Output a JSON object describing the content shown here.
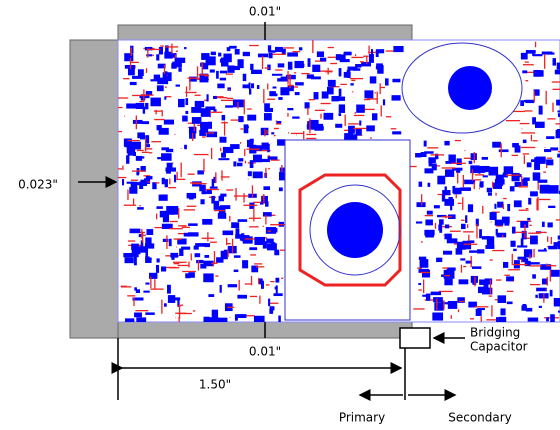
{
  "dimensions": {
    "top_clearance": "0.01\"",
    "left_clearance": "0.023\"",
    "bottom_clearance": "0.01\"",
    "length": "1.50\""
  },
  "labels": {
    "bridging": "Bridging",
    "capacitor": "Capacitor",
    "primary": "Primary",
    "secondary": "Secondary"
  }
}
